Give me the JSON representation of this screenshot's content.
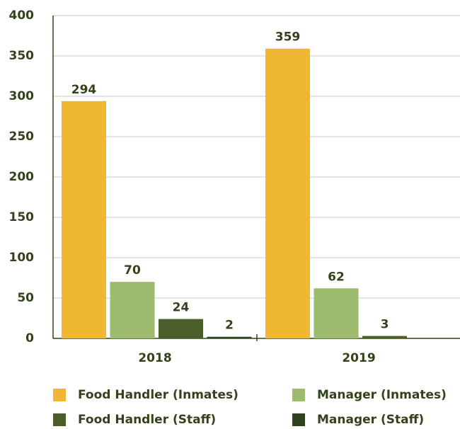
{
  "chart_data": {
    "type": "bar",
    "categories": [
      "2018",
      "2019"
    ],
    "series": [
      {
        "name": "Food Handler (Inmates)",
        "color": "#f0b733",
        "values": [
          294,
          359
        ]
      },
      {
        "name": "Manager (Inmates)",
        "color": "#9dbb6c",
        "values": [
          70,
          62
        ]
      },
      {
        "name": "Food Handler (Staff)",
        "color": "#4b5e2a",
        "values": [
          24,
          3
        ]
      },
      {
        "name": "Manager (Staff)",
        "color": "#2f4220",
        "values": [
          2,
          null
        ]
      }
    ],
    "ylim": [
      0,
      400
    ],
    "yticks": [
      0,
      50,
      100,
      150,
      200,
      250,
      300,
      350,
      400
    ],
    "grid": true,
    "legend": "bottom"
  }
}
